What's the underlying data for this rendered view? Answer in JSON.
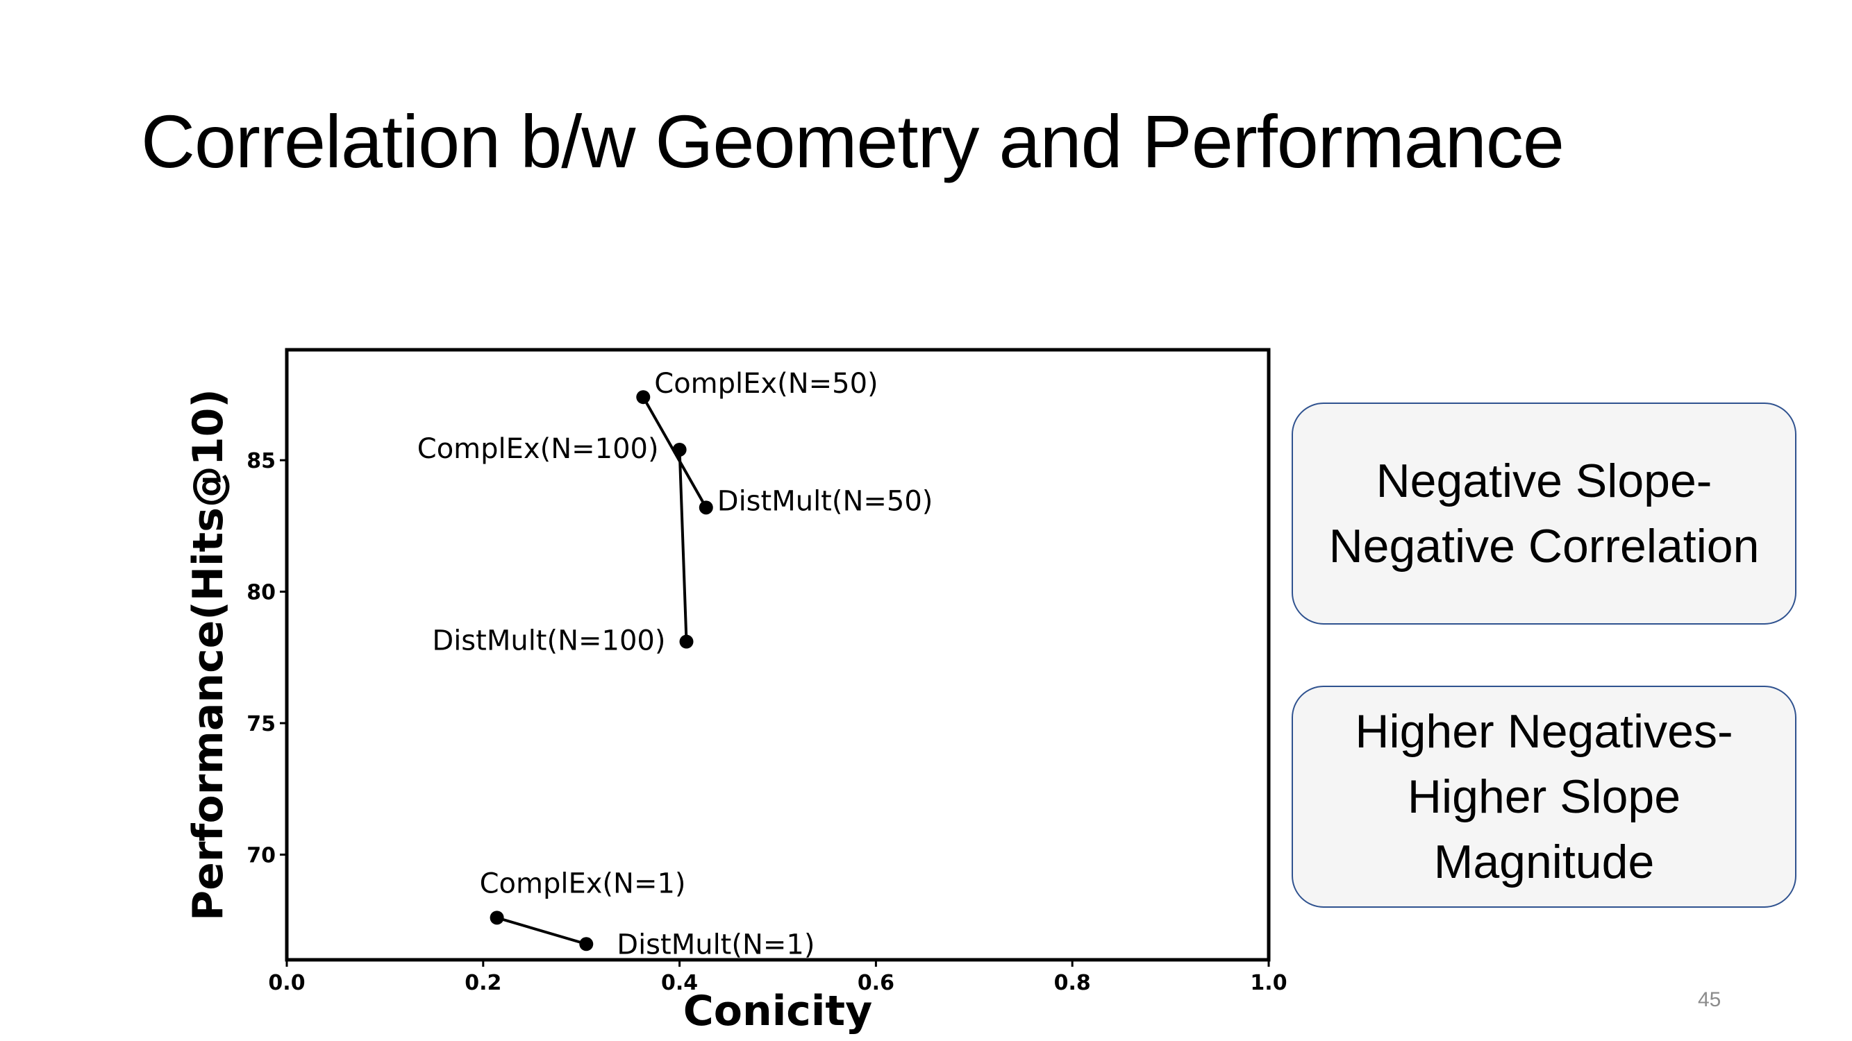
{
  "slide": {
    "title": "Correlation b/w Geometry and Performance",
    "page_number": "45"
  },
  "callouts": [
    {
      "lines": [
        "Negative Slope-",
        "Negative Correlation"
      ]
    },
    {
      "lines": [
        "Higher Negatives-",
        "Higher Slope",
        "Magnitude"
      ]
    }
  ],
  "chart_data": {
    "type": "line",
    "title": "",
    "xlabel": "Conicity",
    "ylabel": "Performance(Hits@10)",
    "xlim": [
      0.0,
      1.0
    ],
    "ylim": [
      66.0,
      89.2
    ],
    "xticks": [
      "0.0",
      "0.2",
      "0.4",
      "0.6",
      "0.8",
      "1.0"
    ],
    "yticks": [
      "70",
      "75",
      "80",
      "85"
    ],
    "grid": false,
    "legend": "none",
    "color": "#000000",
    "series": [
      {
        "points": [
          {
            "x": 0.363,
            "y": 87.4,
            "label": "ComplEx(N=50)",
            "label_side": "right"
          },
          {
            "x": 0.427,
            "y": 83.2,
            "label": "DistMult(N=50)",
            "label_side": "right"
          }
        ]
      },
      {
        "points": [
          {
            "x": 0.4,
            "y": 85.4,
            "label": "ComplEx(N=100)",
            "label_side": "left"
          },
          {
            "x": 0.407,
            "y": 78.1,
            "label": "DistMult(N=100)",
            "label_side": "left"
          }
        ]
      },
      {
        "points": [
          {
            "x": 0.214,
            "y": 67.6,
            "label": "ComplEx(N=1)",
            "label_side": "above"
          },
          {
            "x": 0.305,
            "y": 66.6,
            "label": "DistMult(N=1)",
            "label_side": "right"
          }
        ]
      }
    ]
  }
}
